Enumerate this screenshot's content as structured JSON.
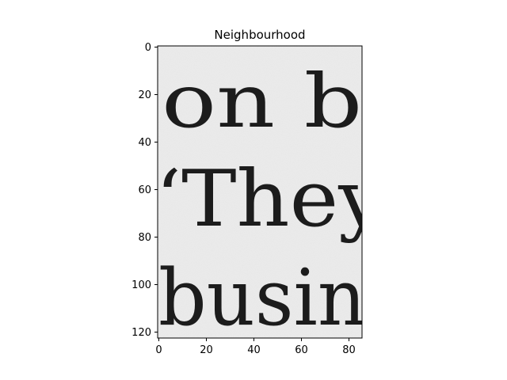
{
  "figure": {
    "title": "Neighbourhood",
    "text_lines": [
      "on bl",
      "‘They",
      "busin"
    ]
  },
  "axes": {
    "x_ticks": [
      0,
      20,
      40,
      60,
      80
    ],
    "y_ticks": [
      0,
      20,
      40,
      60,
      80,
      100,
      120
    ],
    "x_extent": [
      -0.5,
      85.5
    ],
    "y_extent": [
      -0.5,
      122.5
    ]
  },
  "colors": {
    "background": "#ececec",
    "ink": "#1c1c1c"
  }
}
